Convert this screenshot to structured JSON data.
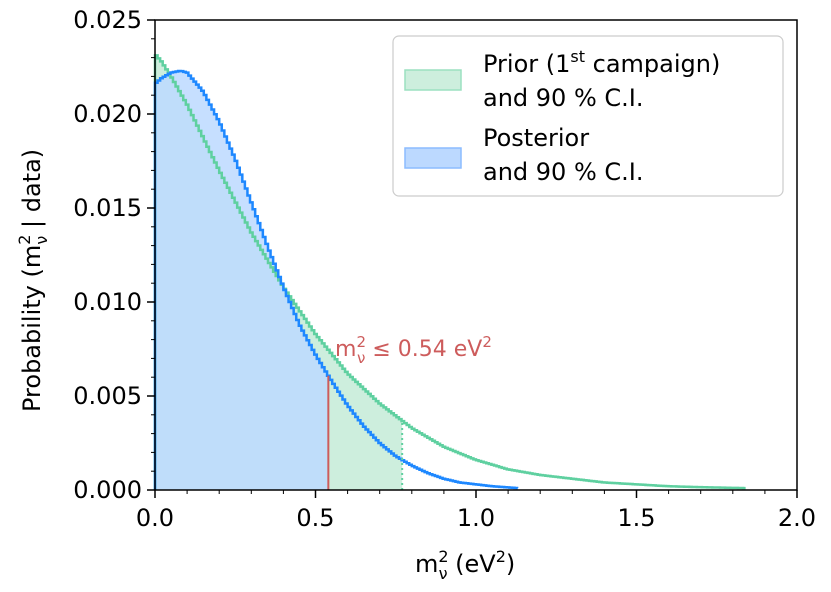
{
  "chart_data": {
    "type": "line",
    "style": "step histogram with shaded 90% C.I.",
    "xlabel": {
      "base": "m",
      "sup": "2",
      "sub": "ν",
      "suffix_pre": " (eV",
      "suffix_sup": "2",
      "suffix_post": ")"
    },
    "ylabel": {
      "pre": "Probability (m",
      "sup": "2",
      "sub": "ν",
      "post": " | data)"
    },
    "xlim": [
      0.0,
      2.0
    ],
    "ylim": [
      0.0,
      0.025
    ],
    "x_ticks": [
      "0.0",
      "0.5",
      "1.0",
      "1.5",
      "2.0"
    ],
    "y_ticks": [
      "0.000",
      "0.005",
      "0.010",
      "0.015",
      "0.020",
      "0.025"
    ],
    "grid": false,
    "legend_position": "top-right",
    "legend": [
      {
        "line1_pre": "Prior (1",
        "line1_sup": "st",
        "line1_post": " campaign)",
        "line2": "and 90 % C.I."
      },
      {
        "line1_pre": "Posterior",
        "line1_sup": "",
        "line1_post": "",
        "line2": "and 90 % C.I."
      }
    ],
    "annotation": {
      "base": "m",
      "sup": "2",
      "sub": "ν",
      "text": " ≤ 0.54 eV",
      "text_sup": "2"
    },
    "series": [
      {
        "name": "Prior (1st campaign)",
        "color": "#5fd0a0",
        "fill": "#cdeedd",
        "ci_upper": 0.77,
        "x": [
          0.0,
          0.02,
          0.05,
          0.1,
          0.2,
          0.3,
          0.4,
          0.5,
          0.6,
          0.7,
          0.8,
          0.9,
          1.0,
          1.1,
          1.2,
          1.3,
          1.4,
          1.5,
          1.6,
          1.7,
          1.84
        ],
        "y": [
          0.0232,
          0.0228,
          0.022,
          0.0205,
          0.017,
          0.0137,
          0.0108,
          0.0083,
          0.0062,
          0.0046,
          0.0033,
          0.0023,
          0.0016,
          0.0011,
          0.0008,
          0.0006,
          0.0004,
          0.0003,
          0.0002,
          0.00015,
          0.0001
        ]
      },
      {
        "name": "Posterior",
        "color": "#1e88ff",
        "fill": "#bcd9ff",
        "ci_upper": 0.54,
        "x": [
          0.0,
          0.02,
          0.05,
          0.08,
          0.1,
          0.15,
          0.2,
          0.25,
          0.3,
          0.35,
          0.4,
          0.45,
          0.5,
          0.55,
          0.6,
          0.65,
          0.7,
          0.75,
          0.8,
          0.85,
          0.9,
          0.95,
          1.0,
          1.05,
          1.13
        ],
        "y": [
          0.0216,
          0.0219,
          0.0222,
          0.0223,
          0.0222,
          0.0212,
          0.0196,
          0.0176,
          0.0153,
          0.013,
          0.0108,
          0.0088,
          0.0072,
          0.0058,
          0.0045,
          0.0034,
          0.0025,
          0.0018,
          0.0013,
          0.0009,
          0.0006,
          0.0004,
          0.0003,
          0.0002,
          0.0001
        ]
      }
    ]
  }
}
